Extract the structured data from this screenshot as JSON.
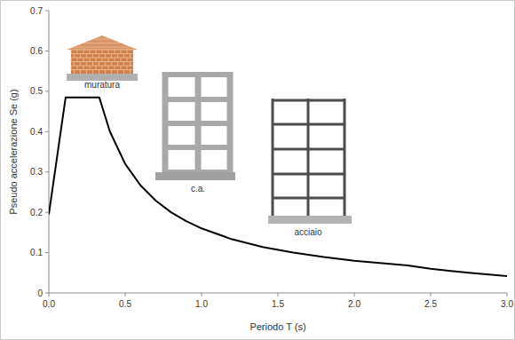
{
  "chart_data": {
    "type": "line",
    "x_label": "Periodo T (s)",
    "y_label": "Pseudo accelerazione Se (g)",
    "x": [
      0,
      0.11,
      0.33,
      0.4,
      0.5,
      0.6,
      0.7,
      0.8,
      0.9,
      1.0,
      1.2,
      1.4,
      1.6,
      1.8,
      2.0,
      2.2,
      2.35,
      2.5,
      2.75,
      3.0
    ],
    "values": [
      0.195,
      0.485,
      0.485,
      0.4,
      0.32,
      0.267,
      0.229,
      0.2,
      0.178,
      0.16,
      0.133,
      0.114,
      0.1,
      0.089,
      0.08,
      0.073,
      0.068,
      0.06,
      0.05,
      0.042
    ],
    "color": "#000000",
    "xlim": [
      0,
      3
    ],
    "xticks": [
      {
        "value": 0,
        "label": "0.0"
      },
      0.5,
      {
        "value": 1,
        "label": "1.0"
      },
      1.5,
      {
        "value": 2,
        "label": "2.0"
      },
      2.5,
      {
        "value": 3,
        "label": "3.0"
      }
    ],
    "ylim": [
      0,
      0.7
    ],
    "yticks": [
      0,
      0.1,
      0.2,
      0.3,
      0.4,
      0.5,
      0.6,
      0.7
    ],
    "grid": false,
    "annotations": [
      {
        "text": "muratura"
      },
      {
        "text": "c.a."
      },
      {
        "text": "acciaio"
      }
    ]
  }
}
